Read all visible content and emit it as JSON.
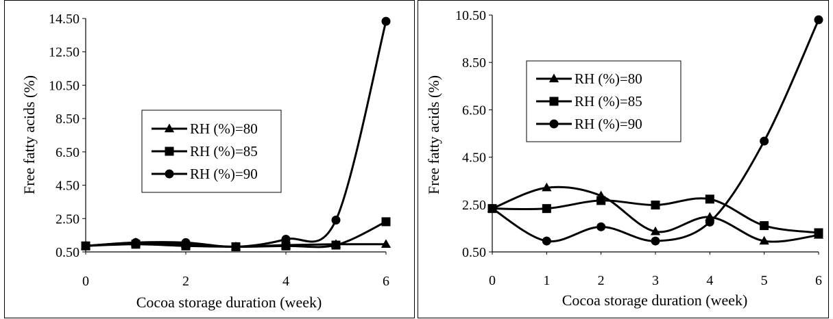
{
  "chart_data": [
    {
      "type": "line",
      "xlabel": "Cocoa storage duration (week)",
      "ylabel": "Free fatty acids (%)",
      "xlim": [
        0,
        6
      ],
      "ylim": [
        0.5,
        14.5
      ],
      "xticks": [
        "0",
        "2",
        "4",
        "6"
      ],
      "yticks": [
        "0.50",
        "2.50",
        "4.50",
        "6.50",
        "8.50",
        "10.50",
        "12.50",
        "14.50"
      ],
      "grid": false,
      "legend_position": "center-left",
      "x": [
        0,
        1,
        2,
        3,
        4,
        5,
        6
      ],
      "series": [
        {
          "name": "RH (%)=80",
          "marker": "triangle",
          "values": [
            0.86,
            1.06,
            0.96,
            0.81,
            0.91,
            0.96,
            0.96
          ]
        },
        {
          "name": "RH (%)=85",
          "marker": "square",
          "values": [
            0.86,
            0.96,
            0.86,
            0.81,
            0.86,
            0.91,
            2.31
          ]
        },
        {
          "name": "RH (%)=90",
          "marker": "circle",
          "values": [
            0.86,
            1.06,
            1.06,
            0.81,
            1.26,
            2.41,
            14.33
          ]
        }
      ]
    },
    {
      "type": "line",
      "xlabel": "Cocoa storage duration (week)",
      "ylabel": "Free fatty acids (%)",
      "xlim": [
        0,
        6
      ],
      "ylim": [
        0.5,
        10.5
      ],
      "xticks": [
        "0",
        "1",
        "2",
        "3",
        "4",
        "5",
        "6"
      ],
      "yticks": [
        "0.50",
        "2.50",
        "4.50",
        "6.50",
        "8.50",
        "10.50"
      ],
      "grid": false,
      "legend_position": "top-left",
      "x": [
        0,
        1,
        2,
        3,
        4,
        5,
        6
      ],
      "series": [
        {
          "name": "RH (%)=80",
          "marker": "triangle",
          "values": [
            2.33,
            3.21,
            2.87,
            1.36,
            1.97,
            0.96,
            1.21
          ]
        },
        {
          "name": "RH (%)=85",
          "marker": "square",
          "values": [
            2.33,
            2.33,
            2.67,
            2.48,
            2.73,
            1.61,
            1.31
          ]
        },
        {
          "name": "RH (%)=90",
          "marker": "circle",
          "values": [
            2.33,
            0.96,
            1.56,
            0.96,
            1.76,
            5.18,
            10.3
          ]
        }
      ]
    }
  ]
}
